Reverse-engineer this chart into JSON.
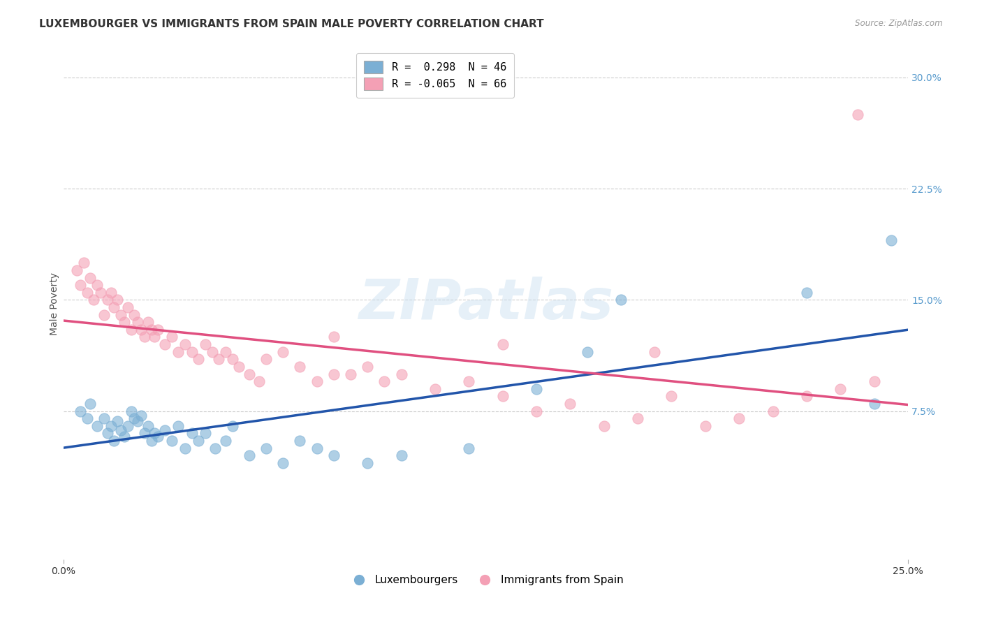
{
  "title": "LUXEMBOURGER VS IMMIGRANTS FROM SPAIN MALE POVERTY CORRELATION CHART",
  "source": "Source: ZipAtlas.com",
  "ylabel": "Male Poverty",
  "xlim": [
    0.0,
    0.25
  ],
  "ylim": [
    -0.025,
    0.32
  ],
  "grid_color": "#cccccc",
  "bg_color": "#ffffff",
  "blue_color": "#7bafd4",
  "pink_color": "#f4a0b5",
  "blue_line_color": "#2255aa",
  "pink_line_color": "#e05080",
  "watermark_text": "ZIPatlas",
  "legend_R_blue": " 0.298",
  "legend_N_blue": "46",
  "legend_R_pink": "-0.065",
  "legend_N_pink": "66",
  "legend_label_blue": "Luxembourgers",
  "legend_label_pink": "Immigrants from Spain",
  "blue_x": [
    0.005,
    0.007,
    0.008,
    0.01,
    0.012,
    0.013,
    0.014,
    0.015,
    0.016,
    0.017,
    0.018,
    0.019,
    0.02,
    0.021,
    0.022,
    0.023,
    0.024,
    0.025,
    0.026,
    0.027,
    0.028,
    0.03,
    0.032,
    0.034,
    0.036,
    0.038,
    0.04,
    0.042,
    0.045,
    0.048,
    0.05,
    0.055,
    0.06,
    0.065,
    0.07,
    0.075,
    0.08,
    0.09,
    0.1,
    0.12,
    0.14,
    0.155,
    0.165,
    0.22,
    0.24,
    0.245
  ],
  "blue_y": [
    0.075,
    0.07,
    0.08,
    0.065,
    0.07,
    0.06,
    0.065,
    0.055,
    0.068,
    0.062,
    0.058,
    0.065,
    0.075,
    0.07,
    0.068,
    0.072,
    0.06,
    0.065,
    0.055,
    0.06,
    0.058,
    0.062,
    0.055,
    0.065,
    0.05,
    0.06,
    0.055,
    0.06,
    0.05,
    0.055,
    0.065,
    0.045,
    0.05,
    0.04,
    0.055,
    0.05,
    0.045,
    0.04,
    0.045,
    0.05,
    0.09,
    0.115,
    0.15,
    0.155,
    0.08,
    0.19
  ],
  "pink_x": [
    0.004,
    0.005,
    0.006,
    0.007,
    0.008,
    0.009,
    0.01,
    0.011,
    0.012,
    0.013,
    0.014,
    0.015,
    0.016,
    0.017,
    0.018,
    0.019,
    0.02,
    0.021,
    0.022,
    0.023,
    0.024,
    0.025,
    0.026,
    0.027,
    0.028,
    0.03,
    0.032,
    0.034,
    0.036,
    0.038,
    0.04,
    0.042,
    0.044,
    0.046,
    0.048,
    0.05,
    0.052,
    0.055,
    0.058,
    0.06,
    0.065,
    0.07,
    0.075,
    0.08,
    0.085,
    0.09,
    0.095,
    0.1,
    0.11,
    0.12,
    0.13,
    0.14,
    0.15,
    0.16,
    0.17,
    0.18,
    0.19,
    0.2,
    0.21,
    0.22,
    0.23,
    0.235,
    0.24,
    0.13,
    0.175,
    0.08
  ],
  "pink_y": [
    0.17,
    0.16,
    0.175,
    0.155,
    0.165,
    0.15,
    0.16,
    0.155,
    0.14,
    0.15,
    0.155,
    0.145,
    0.15,
    0.14,
    0.135,
    0.145,
    0.13,
    0.14,
    0.135,
    0.13,
    0.125,
    0.135,
    0.13,
    0.125,
    0.13,
    0.12,
    0.125,
    0.115,
    0.12,
    0.115,
    0.11,
    0.12,
    0.115,
    0.11,
    0.115,
    0.11,
    0.105,
    0.1,
    0.095,
    0.11,
    0.115,
    0.105,
    0.095,
    0.1,
    0.1,
    0.105,
    0.095,
    0.1,
    0.09,
    0.095,
    0.085,
    0.075,
    0.08,
    0.065,
    0.07,
    0.085,
    0.065,
    0.07,
    0.075,
    0.085,
    0.09,
    0.275,
    0.095,
    0.12,
    0.115,
    0.125
  ],
  "title_fontsize": 11,
  "axis_label_fontsize": 10,
  "tick_fontsize": 10,
  "right_tick_color": "#5599cc",
  "ytick_vals": [
    0.075,
    0.15,
    0.225,
    0.3
  ],
  "ytick_labels": [
    "7.5%",
    "15.0%",
    "22.5%",
    "30.0%"
  ]
}
